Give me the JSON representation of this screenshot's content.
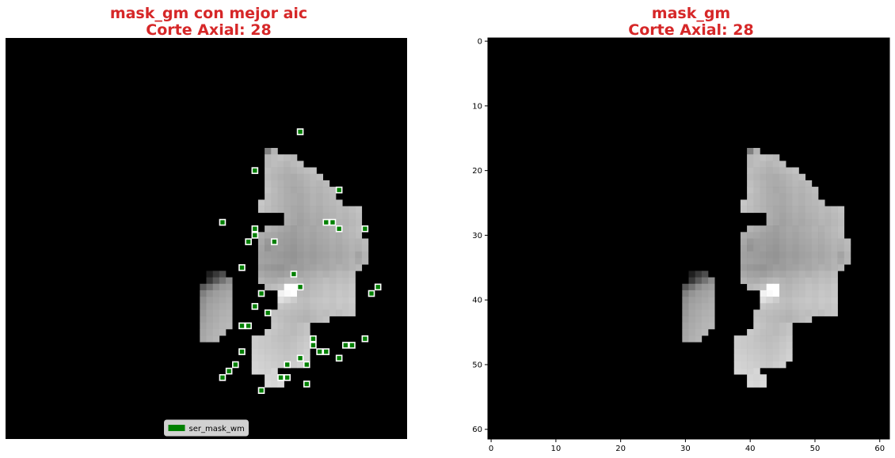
{
  "chart_data": [
    {
      "type": "heatmap",
      "title_line1": "mask_gm con mejor aic",
      "title_line2": "Corte Axial: 28",
      "show_axes": false,
      "grid": false,
      "background": "#000000",
      "legend": {
        "placement": "bottom-center",
        "entries": [
          {
            "label": "ser_mask_wm",
            "color": "#008000"
          }
        ]
      },
      "scatter_marker": {
        "fill": "#008000",
        "edge": "#ffffff",
        "shape": "square"
      },
      "scatter_points": [
        [
          45,
          14
        ],
        [
          38,
          20
        ],
        [
          51,
          23
        ],
        [
          33,
          28
        ],
        [
          49,
          28
        ],
        [
          50,
          28
        ],
        [
          38,
          29
        ],
        [
          51,
          29
        ],
        [
          55,
          29
        ],
        [
          38,
          30
        ],
        [
          37,
          31
        ],
        [
          41,
          31
        ],
        [
          36,
          35
        ],
        [
          44,
          36
        ],
        [
          45,
          38
        ],
        [
          57,
          38
        ],
        [
          39,
          39
        ],
        [
          56,
          39
        ],
        [
          38,
          41
        ],
        [
          40,
          42
        ],
        [
          36,
          44
        ],
        [
          37,
          44
        ],
        [
          47,
          46
        ],
        [
          55,
          46
        ],
        [
          47,
          47
        ],
        [
          52,
          47
        ],
        [
          53,
          47
        ],
        [
          36,
          48
        ],
        [
          48,
          48
        ],
        [
          49,
          48
        ],
        [
          45,
          49
        ],
        [
          51,
          49
        ],
        [
          35,
          50
        ],
        [
          43,
          50
        ],
        [
          46,
          50
        ],
        [
          34,
          51
        ],
        [
          33,
          52
        ],
        [
          42,
          52
        ],
        [
          43,
          52
        ],
        [
          46,
          53
        ],
        [
          39,
          54
        ]
      ]
    },
    {
      "type": "heatmap",
      "title_line1": "mask_gm",
      "title_line2": "Corte Axial: 28",
      "show_axes": true,
      "grid": false,
      "background": "#000000",
      "xlim": [
        -0.5,
        61.5
      ],
      "ylim": [
        61.5,
        -0.5
      ],
      "xticks": [
        0,
        10,
        20,
        30,
        40,
        50,
        60
      ],
      "yticks": [
        0,
        10,
        20,
        30,
        40,
        50,
        60
      ]
    }
  ],
  "mask": {
    "colormap": "gray",
    "value_range": [
      0,
      1
    ],
    "rows": [
      {
        "y": 17,
        "segments": [
          {
            "x0": 40,
            "x1": 41,
            "v": [
              0.5,
              0.7
            ]
          }
        ]
      },
      {
        "y": 18,
        "segments": [
          {
            "x0": 40,
            "x1": 44,
            "v": [
              0.72,
              0.74,
              0.76,
              0.74,
              0.72
            ]
          }
        ]
      },
      {
        "y": 19,
        "segments": [
          {
            "x0": 40,
            "x1": 45,
            "v": [
              0.72,
              0.74,
              0.73,
              0.71,
              0.73,
              0.75
            ]
          }
        ]
      },
      {
        "y": 20,
        "segments": [
          {
            "x0": 40,
            "x1": 47,
            "v": [
              0.74,
              0.72,
              0.71,
              0.69,
              0.7,
              0.72,
              0.74,
              0.76
            ]
          }
        ]
      },
      {
        "y": 21,
        "segments": [
          {
            "x0": 40,
            "x1": 48,
            "v": [
              0.73,
              0.71,
              0.69,
              0.68,
              0.67,
              0.69,
              0.71,
              0.73,
              0.75
            ]
          }
        ]
      },
      {
        "y": 22,
        "segments": [
          {
            "x0": 40,
            "x1": 49,
            "v": [
              0.75,
              0.72,
              0.7,
              0.68,
              0.67,
              0.68,
              0.7,
              0.72,
              0.71,
              0.73
            ]
          }
        ]
      },
      {
        "y": 23,
        "segments": [
          {
            "x0": 40,
            "x1": 50,
            "v": [
              0.76,
              0.73,
              0.7,
              0.68,
              0.66,
              0.67,
              0.69,
              0.71,
              0.7,
              0.72,
              0.74
            ]
          }
        ]
      },
      {
        "y": 24,
        "segments": [
          {
            "x0": 40,
            "x1": 50,
            "v": [
              0.74,
              0.72,
              0.7,
              0.68,
              0.67,
              0.66,
              0.68,
              0.7,
              0.69,
              0.71,
              0.73
            ]
          }
        ]
      },
      {
        "y": 25,
        "segments": [
          {
            "x0": 39,
            "x1": 51,
            "v": [
              0.78,
              0.75,
              0.72,
              0.7,
              0.68,
              0.67,
              0.66,
              0.68,
              0.7,
              0.69,
              0.71,
              0.72,
              0.74
            ]
          }
        ]
      },
      {
        "y": 26,
        "segments": [
          {
            "x0": 39,
            "x1": 54,
            "v": [
              0.77,
              0.74,
              0.72,
              0.7,
              0.68,
              0.66,
              0.65,
              0.67,
              0.69,
              0.68,
              0.7,
              0.71,
              0.73,
              0.72,
              0.74,
              0.76
            ]
          }
        ]
      },
      {
        "y": 27,
        "segments": [
          {
            "x0": 43,
            "x1": 54,
            "v": [
              0.68,
              0.66,
              0.64,
              0.66,
              0.68,
              0.67,
              0.69,
              0.7,
              0.72,
              0.71,
              0.73,
              0.75
            ]
          }
        ]
      },
      {
        "y": 28,
        "segments": [
          {
            "x0": 43,
            "x1": 54,
            "v": [
              0.67,
              0.65,
              0.63,
              0.65,
              0.67,
              0.66,
              0.68,
              0.69,
              0.71,
              0.7,
              0.72,
              0.74
            ]
          }
        ]
      },
      {
        "y": 29,
        "segments": [
          {
            "x0": 40,
            "x1": 54,
            "v": [
              0.7,
              0.68,
              0.66,
              0.64,
              0.62,
              0.64,
              0.66,
              0.65,
              0.67,
              0.68,
              0.7,
              0.69,
              0.71,
              0.73,
              0.75
            ]
          }
        ]
      },
      {
        "y": 30,
        "segments": [
          {
            "x0": 39,
            "x1": 54,
            "v": [
              0.68,
              0.66,
              0.65,
              0.63,
              0.62,
              0.61,
              0.63,
              0.65,
              0.64,
              0.66,
              0.67,
              0.69,
              0.68,
              0.7,
              0.72,
              0.74
            ]
          }
        ]
      },
      {
        "y": 31,
        "segments": [
          {
            "x0": 39,
            "x1": 55,
            "v": [
              0.66,
              0.6,
              0.62,
              0.62,
              0.61,
              0.6,
              0.62,
              0.64,
              0.63,
              0.65,
              0.66,
              0.68,
              0.67,
              0.69,
              0.71,
              0.7,
              0.73
            ]
          }
        ]
      },
      {
        "y": 32,
        "segments": [
          {
            "x0": 39,
            "x1": 55,
            "v": [
              0.64,
              0.58,
              0.61,
              0.62,
              0.6,
              0.59,
              0.61,
              0.63,
              0.62,
              0.64,
              0.65,
              0.67,
              0.66,
              0.68,
              0.7,
              0.69,
              0.72
            ]
          }
        ]
      },
      {
        "y": 33,
        "segments": [
          {
            "x0": 39,
            "x1": 55,
            "v": [
              0.63,
              0.62,
              0.61,
              0.6,
              0.59,
              0.58,
              0.6,
              0.62,
              0.61,
              0.63,
              0.64,
              0.66,
              0.65,
              0.67,
              0.69,
              0.64,
              0.7
            ]
          }
        ]
      },
      {
        "y": 34,
        "segments": [
          {
            "x0": 39,
            "x1": 55,
            "v": [
              0.64,
              0.63,
              0.62,
              0.61,
              0.6,
              0.59,
              0.61,
              0.63,
              0.62,
              0.64,
              0.65,
              0.67,
              0.66,
              0.68,
              0.7,
              0.66,
              0.71
            ]
          }
        ]
      },
      {
        "y": 35,
        "segments": [
          {
            "x0": 39,
            "x1": 54,
            "v": [
              0.62,
              0.6,
              0.59,
              0.58,
              0.6,
              0.62,
              0.61,
              0.63,
              0.64,
              0.66,
              0.65,
              0.67,
              0.69,
              0.68,
              0.7,
              0.72
            ]
          }
        ]
      },
      {
        "y": 36,
        "segments": [
          {
            "x0": 31,
            "x1": 33,
            "v": [
              0.12,
              0.22,
              0.3
            ]
          },
          {
            "x0": 39,
            "x1": 53,
            "v": [
              0.66,
              0.64,
              0.63,
              0.62,
              0.64,
              0.66,
              0.65,
              0.67,
              0.68,
              0.7,
              0.69,
              0.71,
              0.73,
              0.72,
              0.74
            ]
          }
        ]
      },
      {
        "y": 37,
        "segments": [
          {
            "x0": 31,
            "x1": 34,
            "v": [
              0.22,
              0.35,
              0.45,
              0.55
            ]
          },
          {
            "x0": 39,
            "x1": 44,
            "v": [
              0.7,
              0.68,
              0.67,
              0.69,
              0.71,
              0.72
            ]
          },
          {
            "x0": 45,
            "x1": 53,
            "v": [
              0.7,
              0.69,
              0.71,
              0.72,
              0.74,
              0.73,
              0.75,
              0.74,
              0.76
            ]
          }
        ]
      },
      {
        "y": 38,
        "segments": [
          {
            "x0": 30,
            "x1": 34,
            "v": [
              0.35,
              0.45,
              0.55,
              0.6,
              0.62
            ]
          },
          {
            "x0": 40,
            "x1": 42,
            "v": [
              0.72,
              0.74,
              0.76
            ]
          },
          {
            "x0": 43,
            "x1": 44,
            "v": [
              1.0,
              1.0
            ]
          },
          {
            "x0": 45,
            "x1": 53,
            "v": [
              0.72,
              0.71,
              0.73,
              0.74,
              0.76,
              0.75,
              0.77,
              0.76,
              0.78
            ]
          }
        ]
      },
      {
        "y": 39,
        "segments": [
          {
            "x0": 30,
            "x1": 34,
            "v": [
              0.5,
              0.58,
              0.62,
              0.64,
              0.66
            ]
          },
          {
            "x0": 42,
            "x1": 44,
            "v": [
              0.95,
              0.98,
              1.0
            ]
          },
          {
            "x0": 45,
            "x1": 53,
            "v": [
              0.73,
              0.72,
              0.74,
              0.75,
              0.77,
              0.76,
              0.78,
              0.77,
              0.79
            ]
          }
        ]
      },
      {
        "y": 40,
        "segments": [
          {
            "x0": 30,
            "x1": 34,
            "v": [
              0.56,
              0.62,
              0.64,
              0.66,
              0.68
            ]
          },
          {
            "x0": 42,
            "x1": 53,
            "v": [
              0.88,
              0.84,
              0.8,
              0.75,
              0.74,
              0.76,
              0.77,
              0.78,
              0.77,
              0.79,
              0.78,
              0.8
            ]
          }
        ]
      },
      {
        "y": 41,
        "segments": [
          {
            "x0": 30,
            "x1": 34,
            "v": [
              0.58,
              0.64,
              0.66,
              0.68,
              0.69
            ]
          },
          {
            "x0": 42,
            "x1": 53,
            "v": [
              0.78,
              0.76,
              0.75,
              0.74,
              0.73,
              0.75,
              0.76,
              0.77,
              0.76,
              0.78,
              0.77,
              0.79
            ]
          }
        ]
      },
      {
        "y": 42,
        "segments": [
          {
            "x0": 30,
            "x1": 34,
            "v": [
              0.6,
              0.65,
              0.67,
              0.69,
              0.7
            ]
          },
          {
            "x0": 41,
            "x1": 53,
            "v": [
              0.76,
              0.75,
              0.74,
              0.73,
              0.72,
              0.71,
              0.73,
              0.75,
              0.74,
              0.76,
              0.75,
              0.77,
              0.78
            ]
          }
        ]
      },
      {
        "y": 43,
        "segments": [
          {
            "x0": 30,
            "x1": 34,
            "v": [
              0.62,
              0.66,
              0.68,
              0.7,
              0.71
            ]
          },
          {
            "x0": 41,
            "x1": 49,
            "v": [
              0.77,
              0.75,
              0.73,
              0.72,
              0.71,
              0.7,
              0.72,
              0.74,
              0.76
            ]
          }
        ]
      },
      {
        "y": 44,
        "segments": [
          {
            "x0": 30,
            "x1": 34,
            "v": [
              0.64,
              0.67,
              0.69,
              0.71,
              0.72
            ]
          },
          {
            "x0": 41,
            "x1": 46,
            "v": [
              0.78,
              0.76,
              0.74,
              0.73,
              0.75,
              0.77
            ]
          }
        ]
      },
      {
        "y": 45,
        "segments": [
          {
            "x0": 30,
            "x1": 33,
            "v": [
              0.65,
              0.68,
              0.7,
              0.72
            ]
          },
          {
            "x0": 40,
            "x1": 46,
            "v": [
              0.79,
              0.77,
              0.75,
              0.74,
              0.73,
              0.75,
              0.77
            ]
          }
        ]
      },
      {
        "y": 46,
        "segments": [
          {
            "x0": 30,
            "x1": 32,
            "v": [
              0.66,
              0.69,
              0.71
            ]
          },
          {
            "x0": 38,
            "x1": 46,
            "v": [
              0.8,
              0.79,
              0.78,
              0.76,
              0.75,
              0.74,
              0.75,
              0.77,
              0.79
            ]
          }
        ]
      },
      {
        "y": 47,
        "segments": [
          {
            "x0": 38,
            "x1": 46,
            "v": [
              0.8,
              0.79,
              0.78,
              0.77,
              0.76,
              0.75,
              0.76,
              0.78,
              0.8
            ]
          }
        ]
      },
      {
        "y": 48,
        "segments": [
          {
            "x0": 38,
            "x1": 46,
            "v": [
              0.81,
              0.8,
              0.79,
              0.78,
              0.77,
              0.76,
              0.77,
              0.79,
              0.81
            ]
          }
        ]
      },
      {
        "y": 49,
        "segments": [
          {
            "x0": 38,
            "x1": 46,
            "v": [
              0.82,
              0.81,
              0.8,
              0.79,
              0.78,
              0.77,
              0.78,
              0.8,
              0.82
            ]
          }
        ]
      },
      {
        "y": 50,
        "segments": [
          {
            "x0": 38,
            "x1": 45,
            "v": [
              0.83,
              0.82,
              0.81,
              0.8,
              0.79,
              0.78,
              0.8,
              0.82
            ]
          }
        ]
      },
      {
        "y": 51,
        "segments": [
          {
            "x0": 38,
            "x1": 41,
            "v": [
              0.84,
              0.83,
              0.82,
              0.84
            ]
          }
        ]
      },
      {
        "y": 52,
        "segments": [
          {
            "x0": 40,
            "x1": 42,
            "v": [
              0.84,
              0.83,
              0.85
            ]
          }
        ]
      },
      {
        "y": 53,
        "segments": [
          {
            "x0": 40,
            "x1": 42,
            "v": [
              0.85,
              0.84,
              0.86
            ]
          }
        ]
      }
    ]
  }
}
